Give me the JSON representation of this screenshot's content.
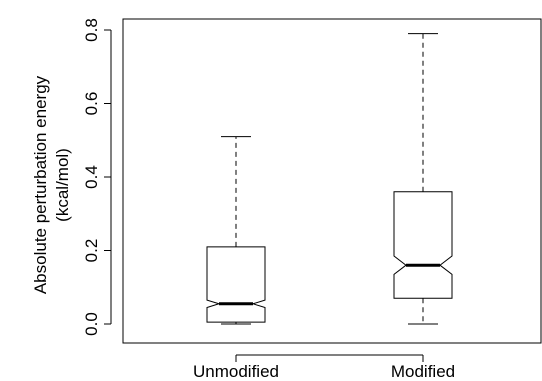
{
  "chart_data": {
    "type": "boxplot",
    "notched": true,
    "ylabel_lines": [
      "Absolute perturbation energy",
      "(kcal/mol)"
    ],
    "ylim": [
      0.0,
      0.8
    ],
    "yticks": [
      "0.0",
      "0.2",
      "0.4",
      "0.6",
      "0.8"
    ],
    "categories": [
      "Unmodified",
      "Modified"
    ],
    "boxes": [
      {
        "name": "Unmodified",
        "whisker_low": 0.0,
        "q1": 0.005,
        "median": 0.055,
        "q3": 0.21,
        "whisker_high": 0.51,
        "notch_low": 0.045,
        "notch_high": 0.065
      },
      {
        "name": "Modified",
        "whisker_low": 0.0,
        "q1": 0.07,
        "median": 0.16,
        "q3": 0.36,
        "whisker_high": 0.79,
        "notch_low": 0.135,
        "notch_high": 0.185
      }
    ],
    "colors": {
      "stroke": "#000000",
      "background": "#ffffff"
    }
  }
}
